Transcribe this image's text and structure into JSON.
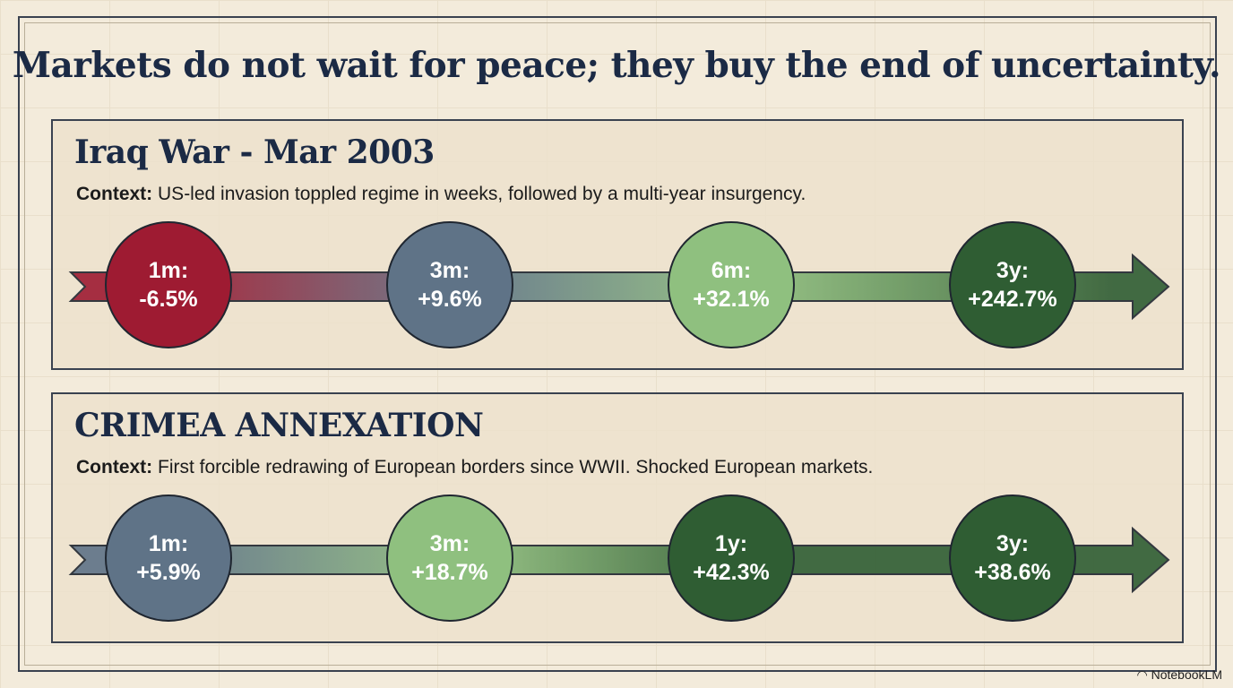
{
  "title": "Markets do not wait for peace; they buy the end of uncertainty.",
  "colors": {
    "negative": "#9e1b32",
    "neutral": "#5f7387",
    "light_green": "#8fc07f",
    "dark_green": "#2f5d33"
  },
  "panels": [
    {
      "heading": "Iraq War - Mar 2003",
      "context_label": "Context:",
      "context": "US-led invasion toppled regime in weeks, followed by a multi-year insurgency.",
      "milestones": [
        {
          "period": "1m:",
          "change": "-6.5%",
          "color": "#9e1b32"
        },
        {
          "period": "3m:",
          "change": "+9.6%",
          "color": "#5f7387"
        },
        {
          "period": "6m:",
          "change": "+32.1%",
          "color": "#8fc07f"
        },
        {
          "period": "3y:",
          "change": "+242.7%",
          "color": "#2f5d33"
        }
      ]
    },
    {
      "heading": "CRIMEA ANNEXATION",
      "context_label": "Context:",
      "context": "First forcible redrawing of European borders since WWII. Shocked European markets.",
      "milestones": [
        {
          "period": "1m:",
          "change": "+5.9%",
          "color": "#5f7387"
        },
        {
          "period": "3m:",
          "change": "+18.7%",
          "color": "#8fc07f"
        },
        {
          "period": "1y:",
          "change": "+42.3%",
          "color": "#2f5d33"
        },
        {
          "period": "3y:",
          "change": "+38.6%",
          "color": "#2f5d33"
        }
      ]
    }
  ],
  "watermark": "NotebookLM"
}
